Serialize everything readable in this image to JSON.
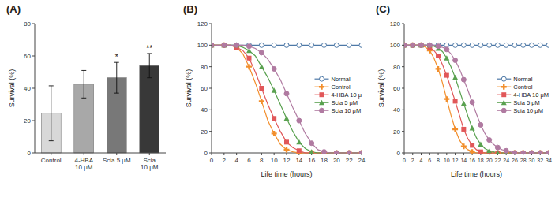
{
  "chart_data": [
    {
      "type": "bar",
      "title": "(A)",
      "categories": [
        "Control",
        "4-HBA 10 μM",
        "Scia 5 μM",
        "Scia 10 μM"
      ],
      "values": [
        24.5,
        42.5,
        46.5,
        54.0
      ],
      "errors": [
        17.0,
        8.5,
        9.5,
        7.5
      ],
      "annotations": [
        null,
        null,
        "*",
        "**"
      ],
      "colors": [
        "#d8d8d8",
        "#a8a8a8",
        "#787878",
        "#383838"
      ],
      "ylabel": "Survival (%)",
      "ylim": [
        0,
        80
      ],
      "yticks": [
        0,
        20,
        40,
        60,
        80
      ],
      "grid": false
    },
    {
      "type": "line",
      "title": "(B)",
      "xlabel": "Life time (hours)",
      "ylabel": "Survival (%)",
      "xlim": [
        0,
        24
      ],
      "xticks": [
        0,
        2,
        4,
        6,
        8,
        10,
        12,
        14,
        16,
        18,
        20,
        22,
        24
      ],
      "ylim": [
        0,
        120
      ],
      "yticks": [
        0,
        20,
        40,
        60,
        80,
        100,
        120
      ],
      "grid": false,
      "legend": "right",
      "x": [
        0,
        1,
        2,
        3,
        4,
        5,
        6,
        7,
        8,
        9,
        10,
        11,
        12,
        13,
        14,
        15,
        16,
        17,
        18,
        19,
        20,
        21,
        22,
        23,
        24
      ],
      "series": [
        {
          "name": "Normal",
          "marker": "open-circle",
          "values": [
            100,
            100,
            100,
            100,
            100,
            100,
            100,
            100,
            100,
            100,
            100,
            100,
            100,
            100,
            100,
            100,
            100,
            100,
            100,
            100,
            100,
            100,
            100,
            100,
            100
          ]
        },
        {
          "name": "Control",
          "marker": "plus",
          "values": [
            100,
            100,
            100,
            100,
            98,
            92,
            80,
            65,
            48,
            30,
            18,
            8,
            3,
            1,
            0,
            0,
            0,
            0,
            0,
            0,
            0,
            0,
            0,
            0,
            0
          ]
        },
        {
          "name": "4-HBA 10 μ",
          "marker": "square",
          "values": [
            100,
            100,
            100,
            100,
            98,
            95,
            88,
            75,
            60,
            45,
            32,
            20,
            10,
            5,
            2,
            0,
            0,
            0,
            0,
            0,
            0,
            0,
            0,
            0,
            0
          ]
        },
        {
          "name": "Scia 5 μM",
          "marker": "triangle",
          "values": [
            100,
            100,
            100,
            100,
            100,
            98,
            95,
            90,
            80,
            70,
            58,
            45,
            32,
            20,
            10,
            4,
            1,
            0,
            0,
            0,
            0,
            0,
            0,
            0,
            0
          ]
        },
        {
          "name": "Scia 10 μM",
          "marker": "circle",
          "values": [
            100,
            100,
            100,
            100,
            100,
            100,
            99,
            97,
            93,
            87,
            78,
            68,
            55,
            42,
            30,
            18,
            9,
            3,
            1,
            0,
            0,
            0,
            0,
            0,
            0
          ]
        }
      ]
    },
    {
      "type": "line",
      "title": "(C)",
      "xlabel": "Life time (hours)",
      "ylabel": "Survival (%)",
      "xlim": [
        0,
        34
      ],
      "xticks": [
        0,
        2,
        4,
        6,
        8,
        10,
        12,
        14,
        16,
        18,
        20,
        22,
        24,
        26,
        28,
        30,
        32,
        34
      ],
      "ylim": [
        0,
        120
      ],
      "yticks": [
        0,
        20,
        40,
        60,
        80,
        100,
        120
      ],
      "grid": false,
      "legend": "right",
      "x": [
        0,
        1,
        2,
        3,
        4,
        5,
        6,
        7,
        8,
        9,
        10,
        11,
        12,
        13,
        14,
        15,
        16,
        17,
        18,
        19,
        20,
        21,
        22,
        23,
        24,
        25,
        26,
        27,
        28,
        29,
        30,
        31,
        32,
        33,
        34
      ],
      "series": [
        {
          "name": "Normal",
          "marker": "open-circle",
          "values": [
            100,
            100,
            100,
            100,
            100,
            100,
            100,
            100,
            100,
            100,
            100,
            100,
            100,
            100,
            100,
            100,
            100,
            100,
            100,
            100,
            100,
            100,
            100,
            100,
            100,
            100,
            100,
            100,
            100,
            100,
            100,
            100,
            100,
            100,
            100
          ]
        },
        {
          "name": "Control",
          "marker": "plus",
          "values": [
            100,
            100,
            100,
            100,
            100,
            98,
            95,
            88,
            78,
            65,
            50,
            35,
            22,
            12,
            6,
            3,
            1,
            0,
            0,
            0,
            0,
            0,
            0,
            0,
            0,
            0,
            0,
            0,
            0,
            0,
            0,
            0,
            0,
            0,
            0
          ]
        },
        {
          "name": "4-HBA 10 μM",
          "marker": "square",
          "values": [
            100,
            100,
            100,
            100,
            100,
            100,
            98,
            95,
            90,
            82,
            72,
            60,
            48,
            35,
            22,
            13,
            7,
            3,
            1,
            0,
            0,
            0,
            0,
            0,
            0,
            0,
            0,
            0,
            0,
            0,
            0,
            0,
            0,
            0,
            0
          ]
        },
        {
          "name": "Scia 5 μM",
          "marker": "triangle",
          "values": [
            100,
            100,
            100,
            100,
            100,
            100,
            100,
            99,
            97,
            94,
            88,
            80,
            70,
            58,
            46,
            34,
            23,
            14,
            8,
            4,
            2,
            1,
            0,
            0,
            0,
            0,
            0,
            0,
            0,
            0,
            0,
            0,
            0,
            0,
            0
          ]
        },
        {
          "name": "Scia 10 μM",
          "marker": "circle",
          "values": [
            100,
            100,
            100,
            100,
            100,
            100,
            100,
            100,
            99,
            98,
            96,
            92,
            86,
            78,
            68,
            58,
            47,
            36,
            26,
            18,
            12,
            8,
            5,
            3,
            2,
            1,
            0,
            0,
            0,
            0,
            0,
            0,
            0,
            0,
            0
          ]
        }
      ]
    }
  ]
}
